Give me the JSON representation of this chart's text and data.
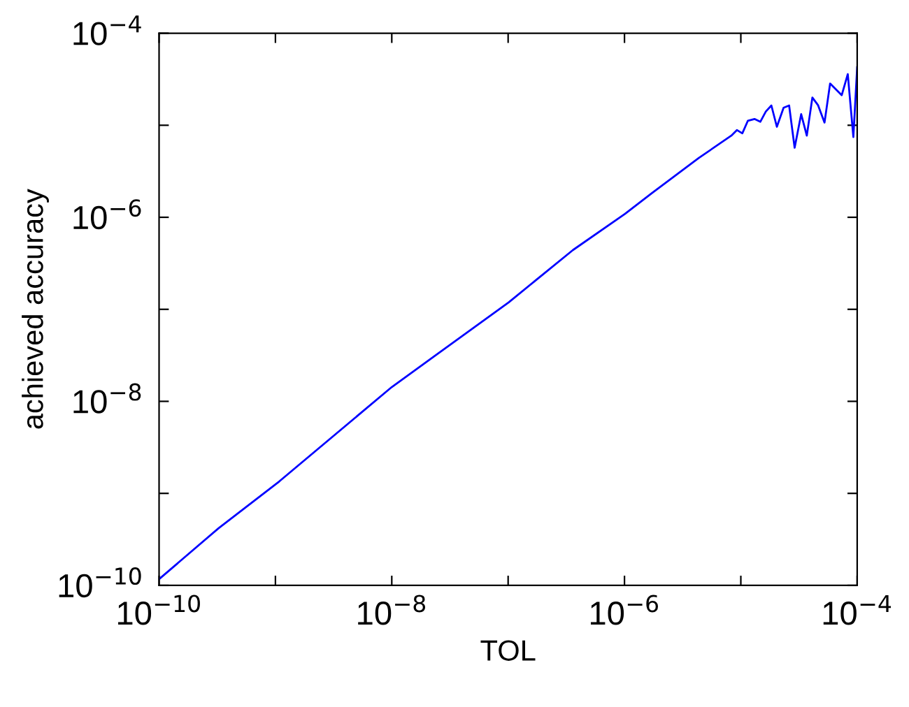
{
  "chart_data": {
    "type": "line",
    "xlabel": "TOL",
    "ylabel": "achieved accuracy",
    "log": "xy",
    "grid": false,
    "marker": "none",
    "line_style": "solid",
    "xlim": [
      1e-10,
      0.0001
    ],
    "ylim": [
      1e-10,
      0.0001
    ],
    "xticks": [
      {
        "value": 1e-10,
        "label": "10$^{−10}$"
      },
      {
        "value": 1e-09,
        "label": null
      },
      {
        "value": 1e-08,
        "label": "10$^{−8}$"
      },
      {
        "value": 1e-07,
        "label": null
      },
      {
        "value": 1e-06,
        "label": "10$^{−6}$"
      },
      {
        "value": 1e-05,
        "label": null
      },
      {
        "value": 0.0001,
        "label": "10$^{−4}$"
      }
    ],
    "yticks": [
      {
        "value": 1e-10,
        "label": "10$^{−10}$"
      },
      {
        "value": 1e-09,
        "label": null
      },
      {
        "value": 1e-08,
        "label": "10$^{−8}$"
      },
      {
        "value": 1e-07,
        "label": null
      },
      {
        "value": 1e-06,
        "label": "10$^{−6}$"
      },
      {
        "value": 1e-05,
        "label": null
      },
      {
        "value": 0.0001,
        "label": "10$^{−4}$"
      }
    ],
    "series": [
      {
        "color": "#0000ff",
        "x": [
          1e-10,
          3.26e-10,
          1.08e-09,
          1e-08,
          1.01e-07,
          3.6e-07,
          1.01e-06,
          1.73e-06,
          4.35e-06,
          8.28e-06,
          9.25e-06,
          1.03e-05,
          1.15e-05,
          1.31e-05,
          1.47e-05,
          1.64e-05,
          1.83e-05,
          2.04e-05,
          2.33e-05,
          2.6e-05,
          2.9e-05,
          3.3e-05,
          3.69e-05,
          4.12e-05,
          4.6e-05,
          5.24e-05,
          5.85e-05,
          7.36e-05,
          8.3e-05,
          9.27e-05,
          0.0001
        ],
        "values": [
          1.17e-10,
          4.2e-10,
          1.35e-09,
          1.43e-08,
          1.19e-07,
          4.4e-07,
          1.09e-06,
          1.84e-06,
          4.41e-06,
          7.71e-06,
          8.87e-06,
          8.17e-06,
          1.12e-05,
          1.17e-05,
          1.09e-05,
          1.41e-05,
          1.64e-05,
          9.62e-06,
          1.55e-05,
          1.64e-05,
          5.7e-06,
          1.32e-05,
          7.71e-06,
          2e-05,
          1.66e-05,
          1.07e-05,
          2.84e-05,
          2.12e-05,
          3.59e-05,
          7.45e-06,
          4.28e-05
        ]
      }
    ]
  }
}
